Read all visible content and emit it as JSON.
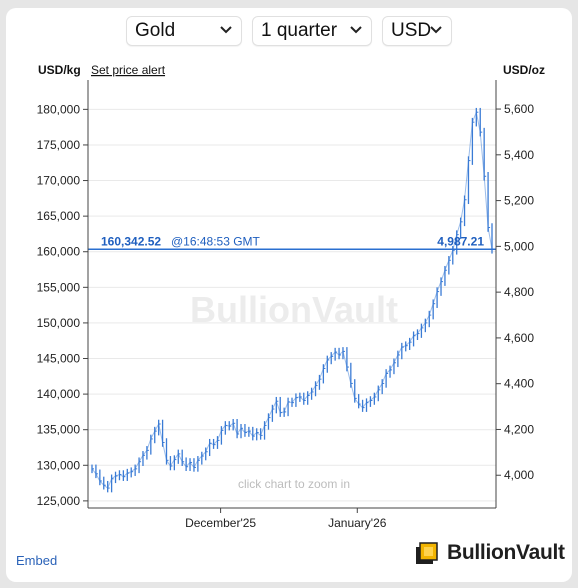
{
  "controls": {
    "metal": "Gold",
    "range": "1 quarter",
    "currency": "USD"
  },
  "header": {
    "left_unit": "USD/kg",
    "alert_link": "Set price alert",
    "right_unit": "USD/oz"
  },
  "watermark": "BullionVault",
  "zoom_hint": "click chart to zoom in",
  "current_price": {
    "kg": "160,342.52",
    "time": "@16:48:53 GMT",
    "oz": "4,987.21",
    "kg_value": 160342.52
  },
  "footer": {
    "embed": "Embed",
    "brand": "BullionVault"
  },
  "colors": {
    "series": "#3a7bd5",
    "price_line": "#2a6fd0",
    "price_text": "#1f5fbf",
    "link": "#2a62b8",
    "logo_gold": "#f2b400"
  },
  "chart_data": {
    "type": "line",
    "x_ticks": [
      "December'25",
      "January'26"
    ],
    "y_left": {
      "label": "USD/kg",
      "ticks": [
        "125,000",
        "130,000",
        "135,000",
        "140,000",
        "145,000",
        "150,000",
        "155,000",
        "160,000",
        "165,000",
        "170,000",
        "175,000",
        "180,000"
      ],
      "tick_values": [
        125000,
        130000,
        135000,
        140000,
        145000,
        150000,
        155000,
        160000,
        165000,
        170000,
        175000,
        180000
      ],
      "range": [
        124000,
        183000
      ]
    },
    "y_right": {
      "label": "USD/oz",
      "ticks": [
        "4,000",
        "4,200",
        "4,400",
        "4,600",
        "4,800",
        "5,000",
        "5,200",
        "5,400",
        "5,600"
      ],
      "tick_values": [
        4000,
        4200,
        4400,
        4600,
        4800,
        5000,
        5200,
        5400,
        5600
      ]
    },
    "grid": true,
    "series": [
      {
        "values": [
          129500,
          128800,
          127800,
          127200,
          126800,
          128100,
          128500,
          128700,
          128400,
          128900,
          129100,
          129500,
          130500,
          131400,
          132100,
          133700,
          134800,
          135800,
          133200,
          130700,
          129900,
          130800,
          131600,
          130500,
          129800,
          130400,
          129700,
          130700,
          131300,
          131900,
          133100,
          132900,
          133500,
          134900,
          135600,
          135500,
          135900,
          134400,
          135200,
          134600,
          134800,
          134100,
          134600,
          134200,
          135600,
          136700,
          137900,
          139000,
          137400,
          137500,
          138900,
          138800,
          139500,
          139600,
          139100,
          139800,
          140300,
          141200,
          142100,
          143600,
          144800,
          145300,
          145900,
          145500,
          146000,
          143800,
          141500,
          139400,
          138600,
          138100,
          138800,
          139100,
          139600,
          140600,
          141500,
          142900,
          143400,
          144400,
          145500,
          146600,
          146800,
          147300,
          148200,
          148500,
          149300,
          150000,
          151100,
          152700,
          154400,
          155800,
          157400,
          158800,
          160200,
          162400,
          164200,
          167300,
          172800,
          178200,
          179600,
          176800,
          170600,
          163400,
          160342
        ]
      }
    ]
  }
}
